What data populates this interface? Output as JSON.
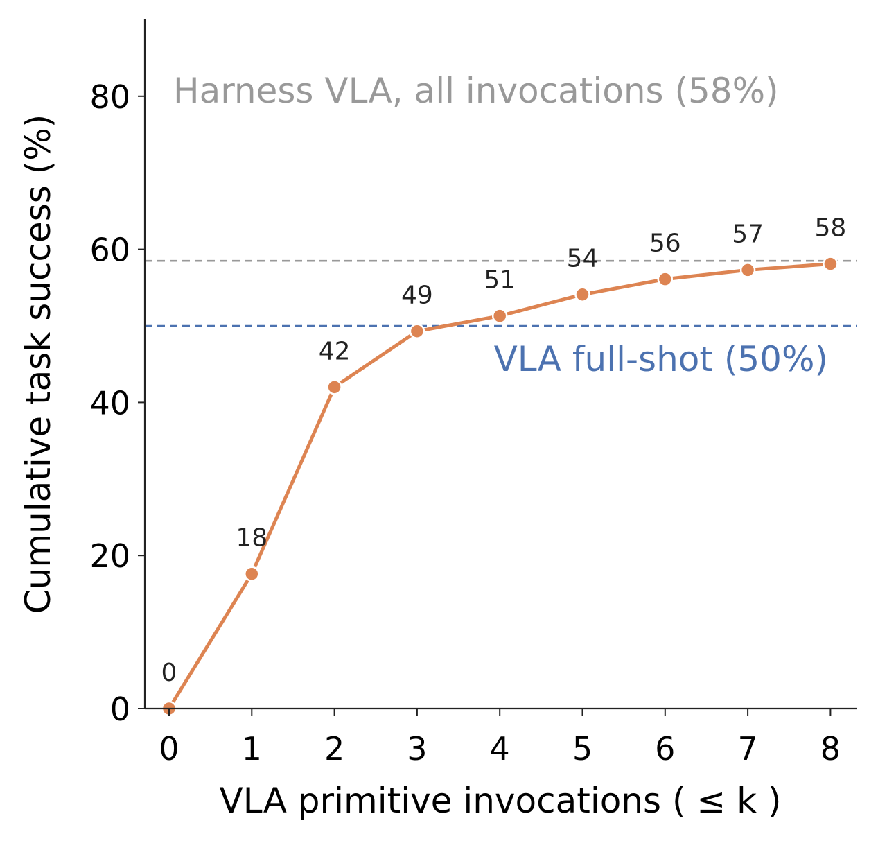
{
  "chart_data": {
    "type": "line",
    "xlabel": "VLA primitive invocations ( ≤ k )",
    "ylabel": "Cumulative task success (%)",
    "xlim": [
      -0.3,
      8.3
    ],
    "ylim": [
      0,
      90
    ],
    "x_ticks": [
      0,
      1,
      2,
      3,
      4,
      5,
      6,
      7,
      8
    ],
    "y_ticks": [
      0,
      20,
      40,
      60,
      80
    ],
    "grid": false,
    "series": [
      {
        "x": [
          0,
          1,
          2,
          3,
          4,
          5,
          6,
          7,
          8
        ],
        "y": [
          0,
          17.6,
          42.0,
          49.3,
          51.3,
          54.1,
          56.1,
          57.3,
          58.1
        ],
        "labels": [
          "0",
          "18",
          "42",
          "49",
          "51",
          "54",
          "56",
          "57",
          "58"
        ],
        "color": "#dd8452"
      }
    ],
    "reference_lines": [
      {
        "value": 58.5,
        "label": "Harness VLA, all invocations (58%)",
        "color": "#999999",
        "style": "dashed"
      },
      {
        "value": 50,
        "label": "VLA full-shot (50%)",
        "color": "#4c72b0",
        "style": "dashed"
      }
    ]
  }
}
